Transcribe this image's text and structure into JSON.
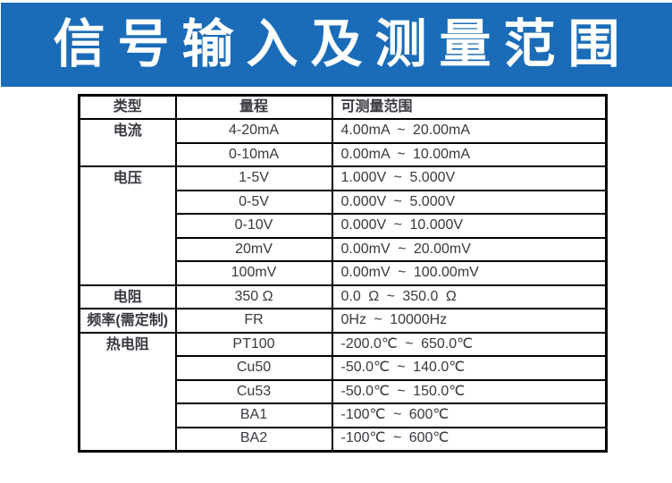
{
  "colors": {
    "banner_bg": "#1a6cb8",
    "banner_text": "#ffffff",
    "table_border": "#000000",
    "table_text": "#383840"
  },
  "banner": {
    "title": "信号输入及测量范围"
  },
  "table": {
    "headers": {
      "type": "类型",
      "range": "量程",
      "measurable": "可测量范围"
    },
    "groups": [
      {
        "type": "电流",
        "entries": [
          {
            "range": "4-20mA",
            "measurable": "4.00mA ~ 20.00mA"
          },
          {
            "range": "0-10mA",
            "measurable": "0.00mA ~ 10.00mA"
          }
        ]
      },
      {
        "type": "电压",
        "entries": [
          {
            "range": "1-5V",
            "measurable": "1.000V ~ 5.000V"
          },
          {
            "range": "0-5V",
            "measurable": "0.000V ~ 5.000V"
          },
          {
            "range": "0-10V",
            "measurable": "0.000V ~ 10.000V"
          },
          {
            "range": "20mV",
            "measurable": "0.00mV ~ 20.00mV"
          },
          {
            "range": "100mV",
            "measurable": "0.00mV ~ 100.00mV"
          }
        ]
      },
      {
        "type": "电阻",
        "entries": [
          {
            "range": "350 Ω",
            "measurable": "0.0 Ω ~ 350.0 Ω"
          }
        ]
      },
      {
        "type": "频率(需定制)",
        "entries": [
          {
            "range": "FR",
            "measurable": "0Hz ~ 10000Hz"
          }
        ]
      },
      {
        "type": "热电阻",
        "entries": [
          {
            "range": "PT100",
            "measurable": "-200.0℃ ~ 650.0℃"
          },
          {
            "range": "Cu50",
            "measurable": "-50.0℃ ~ 140.0℃"
          },
          {
            "range": "Cu53",
            "measurable": "-50.0℃ ~ 150.0℃"
          },
          {
            "range": "BA1",
            "measurable": "-100℃ ~ 600℃"
          },
          {
            "range": "BA2",
            "measurable": "-100℃ ~ 600℃"
          }
        ]
      }
    ]
  }
}
